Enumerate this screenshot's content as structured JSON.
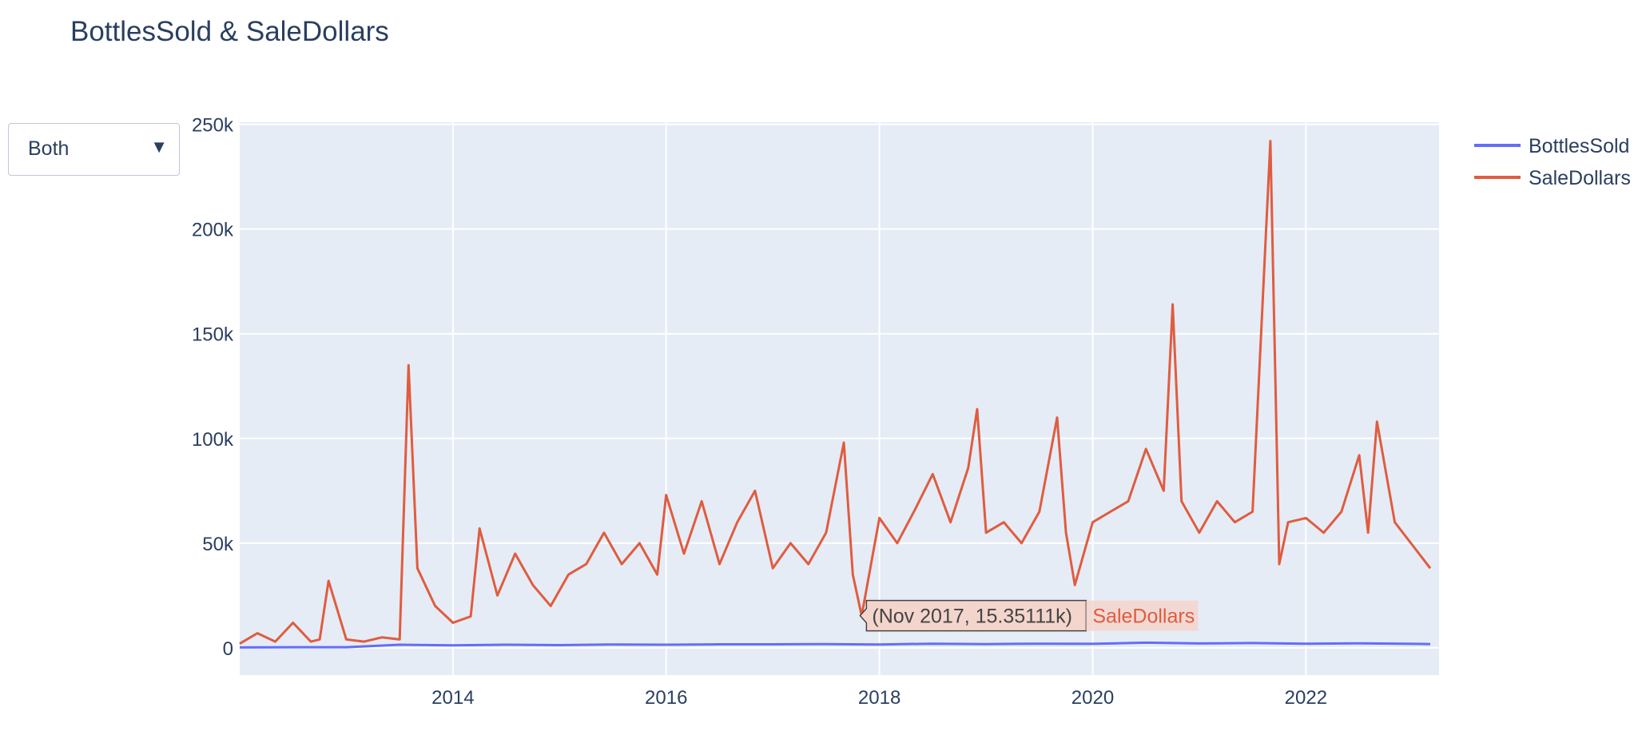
{
  "title": "BottlesSold & SaleDollars",
  "dropdown": {
    "selected": "Both",
    "arrow_icon": "caret-down-icon"
  },
  "colors": {
    "plot_bg": "#e5ecf6",
    "grid": "#ffffff",
    "text": "#2a3f5f",
    "BottlesSold": "#636efa",
    "SaleDollars": "#e05c3f"
  },
  "hover": {
    "text": "(Nov 2017, 15.35111k)",
    "series": "SaleDollars",
    "x": "2017-11-01",
    "y": 15351.11
  },
  "chart_data": {
    "type": "line",
    "title": "BottlesSold & SaleDollars",
    "xlabel": "",
    "ylabel": "",
    "xlim": [
      "2012-01-01",
      "2023-03-31"
    ],
    "ylim": [
      -13000,
      251000
    ],
    "xticks": [
      "2014",
      "2016",
      "2018",
      "2020",
      "2022"
    ],
    "yticks": [
      0,
      50000,
      100000,
      150000,
      200000,
      250000
    ],
    "ytick_labels": [
      "0",
      "50k",
      "100k",
      "150k",
      "200k",
      "250k"
    ],
    "grid": true,
    "legend_position": "top-right",
    "series": [
      {
        "name": "BottlesSold",
        "x": [
          "2012-01",
          "2012-07",
          "2013-01",
          "2013-07",
          "2014-01",
          "2014-07",
          "2015-01",
          "2015-07",
          "2016-01",
          "2016-07",
          "2017-01",
          "2017-07",
          "2018-01",
          "2018-07",
          "2019-01",
          "2019-07",
          "2020-01",
          "2020-07",
          "2021-01",
          "2021-07",
          "2022-01",
          "2022-07",
          "2023-01",
          "2023-03"
        ],
        "y": [
          200,
          300,
          300,
          1500,
          1200,
          1500,
          1300,
          1600,
          1500,
          1700,
          1700,
          1800,
          1600,
          2000,
          1800,
          2000,
          1900,
          2500,
          2100,
          2300,
          2000,
          2200,
          1900,
          1800
        ]
      },
      {
        "name": "SaleDollars",
        "x": [
          "2012-01",
          "2012-03",
          "2012-05",
          "2012-07",
          "2012-09",
          "2012-10",
          "2012-11",
          "2013-01",
          "2013-03",
          "2013-05",
          "2013-07",
          "2013-08",
          "2013-09",
          "2013-11",
          "2014-01",
          "2014-03",
          "2014-04",
          "2014-06",
          "2014-08",
          "2014-10",
          "2014-12",
          "2015-02",
          "2015-04",
          "2015-06",
          "2015-08",
          "2015-10",
          "2015-12",
          "2016-01",
          "2016-03",
          "2016-05",
          "2016-07",
          "2016-09",
          "2016-11",
          "2017-01",
          "2017-03",
          "2017-05",
          "2017-07",
          "2017-09",
          "2017-10",
          "2017-11",
          "2018-01",
          "2018-03",
          "2018-05",
          "2018-07",
          "2018-09",
          "2018-11",
          "2018-12",
          "2019-01",
          "2019-03",
          "2019-05",
          "2019-07",
          "2019-09",
          "2019-10",
          "2019-11",
          "2020-01",
          "2020-03",
          "2020-05",
          "2020-07",
          "2020-09",
          "2020-10",
          "2020-11",
          "2021-01",
          "2021-03",
          "2021-05",
          "2021-07",
          "2021-09",
          "2021-10",
          "2021-11",
          "2022-01",
          "2022-03",
          "2022-05",
          "2022-07",
          "2022-08",
          "2022-09",
          "2022-11",
          "2023-01",
          "2023-03"
        ],
        "y": [
          2000,
          7000,
          3000,
          12000,
          3000,
          4000,
          32000,
          4000,
          3000,
          5000,
          4000,
          135000,
          38000,
          20000,
          12000,
          15000,
          57000,
          25000,
          45000,
          30000,
          20000,
          35000,
          40000,
          55000,
          40000,
          50000,
          35000,
          73000,
          45000,
          70000,
          40000,
          60000,
          75000,
          38000,
          50000,
          40000,
          55000,
          98000,
          35000,
          15351,
          62000,
          50000,
          66000,
          83000,
          60000,
          86000,
          114000,
          55000,
          60000,
          50000,
          65000,
          110000,
          55000,
          30000,
          60000,
          65000,
          70000,
          95000,
          75000,
          164000,
          70000,
          55000,
          70000,
          60000,
          65000,
          242000,
          40000,
          60000,
          62000,
          55000,
          65000,
          92000,
          55000,
          108000,
          60000,
          49000,
          38000
        ]
      }
    ]
  }
}
